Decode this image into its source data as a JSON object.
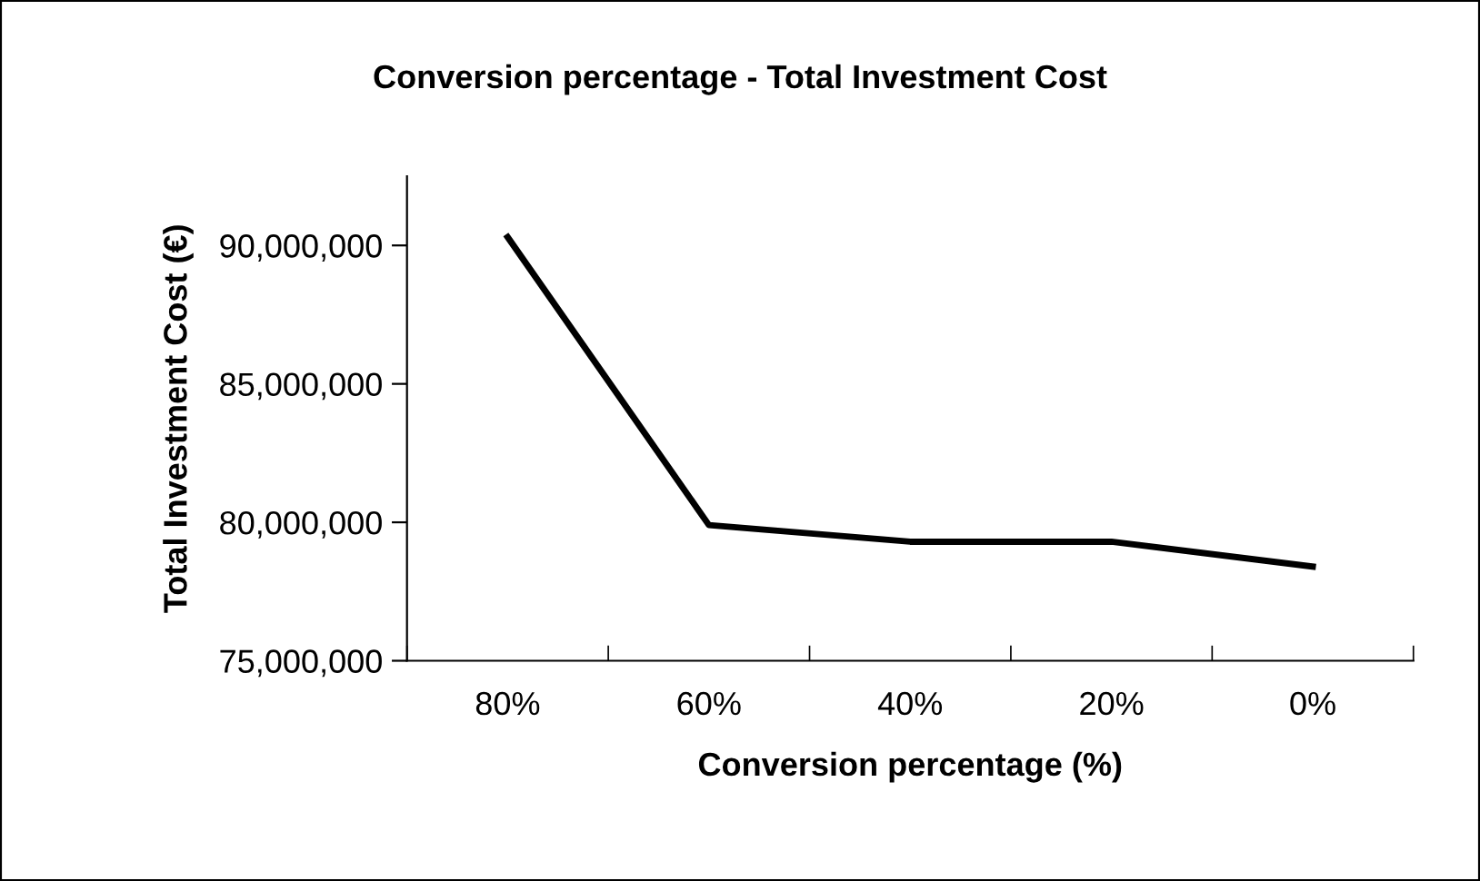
{
  "chart_data": {
    "type": "line",
    "title": "Conversion percentage - Total Investment Cost",
    "xlabel": "Conversion percentage (%)",
    "ylabel": "Total Investment Cost (€)",
    "categories": [
      "80%",
      "60%",
      "40%",
      "20%",
      "0%"
    ],
    "series": [
      {
        "color": "#000000",
        "values": [
          90300000,
          79900000,
          79300000,
          79300000,
          78400000
        ]
      }
    ],
    "ylim": [
      75000000,
      92500000
    ],
    "yticks": [
      {
        "value": 75000000,
        "label": "75,000,000"
      },
      {
        "value": 80000000,
        "label": "80,000,000"
      },
      {
        "value": 85000000,
        "label": "85,000,000"
      },
      {
        "value": 90000000,
        "label": "90,000,000"
      }
    ],
    "grid": false,
    "legend": false,
    "marker": "none",
    "line_style": "solid"
  }
}
